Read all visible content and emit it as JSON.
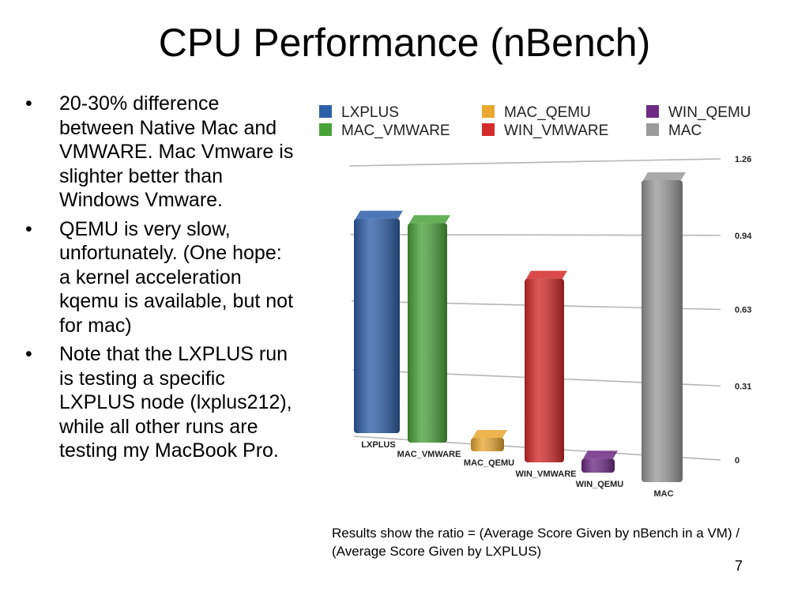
{
  "slide": {
    "title": "CPU Performance (nBench)",
    "bullets": [
      "20-30% difference between Native Mac and VMWARE. Mac Vmware is slighter better than Windows Vmware.",
      "QEMU is very slow, unfortunately. (One hope: a kernel acceleration kqemu is available, but not for mac)",
      "Note that the LXPLUS run is testing a specific LXPLUS node (lxplus212), while all other runs are testing my MacBook Pro."
    ],
    "bullet_glyph": "•",
    "caption": "Results show the ratio = (Average Score Given by nBench in a VM) / (Average Score Given by LXPLUS)",
    "page_number": "7"
  },
  "chart_data": {
    "type": "bar",
    "categories": [
      "LXPLUS",
      "MAC_VMWARE",
      "MAC_QEMU",
      "WIN_VMWARE",
      "WIN_QEMU",
      "MAC"
    ],
    "values": [
      1.0,
      1.0,
      0.06,
      0.8,
      0.06,
      1.26
    ],
    "colors": [
      "#2f5fa8",
      "#49a33a",
      "#e9a832",
      "#d42a2a",
      "#6d2b84",
      "#9a9a9a"
    ],
    "legend": [
      {
        "name": "LXPLUS",
        "color": "#2f5fa8"
      },
      {
        "name": "MAC_VMWARE",
        "color": "#49a33a"
      },
      {
        "name": "MAC_QEMU",
        "color": "#e9a832"
      },
      {
        "name": "WIN_VMWARE",
        "color": "#d42a2a"
      },
      {
        "name": "WIN_QEMU",
        "color": "#6d2b84"
      },
      {
        "name": "MAC",
        "color": "#9a9a9a"
      }
    ],
    "legend_position": "top",
    "y_ticks": [
      "0",
      "0.31",
      "0.63",
      "0.94",
      "1.26"
    ],
    "ylim": [
      0,
      1.26
    ],
    "grid": true,
    "style": "3d-perspective"
  }
}
